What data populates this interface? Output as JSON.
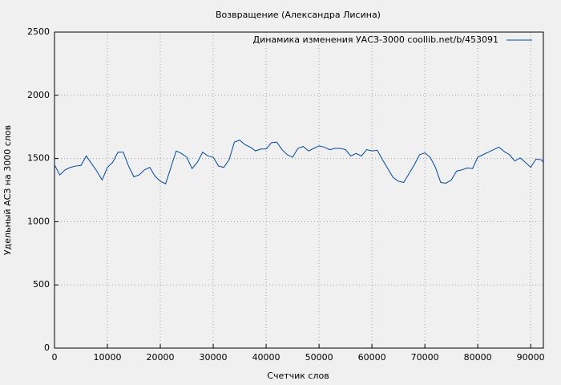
{
  "chart_data": {
    "type": "line",
    "title": "Возвращение (Александра Лисина)",
    "x_label": "Счетчик слов",
    "y_label": "Удельный АСЗ на 3000 слов",
    "x": [
      0,
      1000,
      2000,
      3000,
      4000,
      5000,
      6000,
      7000,
      8000,
      9000,
      10000,
      11000,
      12000,
      13000,
      14000,
      15000,
      16000,
      17000,
      18000,
      19000,
      20000,
      21000,
      22000,
      23000,
      24000,
      25000,
      26000,
      27000,
      28000,
      29000,
      30000,
      31000,
      32000,
      33000,
      34000,
      35000,
      36000,
      37000,
      38000,
      39000,
      40000,
      41000,
      42000,
      43000,
      44000,
      45000,
      46000,
      47000,
      48000,
      49000,
      50000,
      51000,
      52000,
      53000,
      54000,
      55000,
      56000,
      57000,
      58000,
      59000,
      60000,
      61000,
      62000,
      63000,
      64000,
      65000,
      66000,
      67000,
      68000,
      69000,
      70000,
      71000,
      72000,
      73000,
      74000,
      75000,
      76000,
      77000,
      78000,
      79000,
      80000,
      81000,
      82000,
      83000,
      84000,
      85000,
      86000,
      87000,
      88000,
      89000,
      90000,
      91000,
      92000,
      92400
    ],
    "series": [
      {
        "name": "Динамика изменения УАСЗ-3000  coollib.net/b/453091",
        "color": "#00479e",
        "values": [
          1450,
          1370,
          1410,
          1430,
          1440,
          1445,
          1520,
          1460,
          1400,
          1330,
          1430,
          1470,
          1550,
          1550,
          1440,
          1355,
          1370,
          1410,
          1430,
          1360,
          1320,
          1300,
          1430,
          1560,
          1540,
          1510,
          1420,
          1470,
          1550,
          1520,
          1510,
          1440,
          1430,
          1490,
          1630,
          1645,
          1610,
          1590,
          1560,
          1575,
          1575,
          1625,
          1630,
          1570,
          1530,
          1510,
          1580,
          1595,
          1560,
          1580,
          1600,
          1590,
          1570,
          1580,
          1580,
          1570,
          1520,
          1540,
          1520,
          1570,
          1560,
          1565,
          1490,
          1420,
          1350,
          1320,
          1310,
          1380,
          1450,
          1530,
          1545,
          1510,
          1430,
          1310,
          1305,
          1330,
          1400,
          1410,
          1425,
          1420,
          1510,
          1530,
          1550,
          1570,
          1590,
          1555,
          1530,
          1480,
          1505,
          1470,
          1430,
          1495,
          1490,
          1470
        ]
      }
    ],
    "xlim": [
      0,
      92400
    ],
    "ylim": [
      0,
      2500
    ],
    "xticks": [
      0,
      10000,
      20000,
      30000,
      40000,
      50000,
      60000,
      70000,
      80000,
      90000
    ],
    "yticks": [
      0,
      500,
      1000,
      1500,
      2000,
      2500
    ],
    "grid": true,
    "legend": "top-right"
  }
}
